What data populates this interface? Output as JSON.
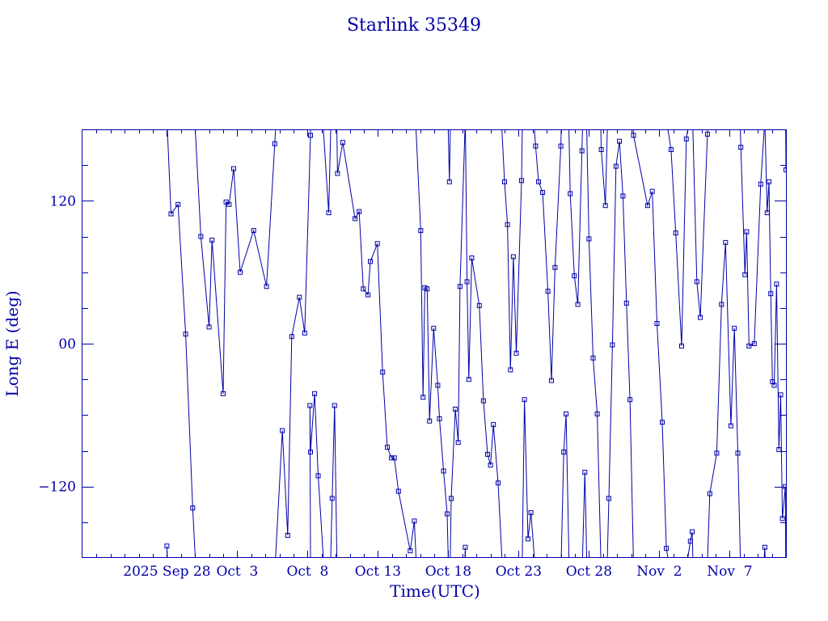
{
  "colors": {
    "ink": "#0000a8",
    "background": "#ffffff"
  },
  "chart_data": {
    "type": "line",
    "title": "Starlink 35349",
    "xlabel": "Time(UTC)",
    "ylabel": "Long E (deg)",
    "x_unit": "days",
    "xlim": [
      "2025-09-22",
      "2025-11-11"
    ],
    "ylim": [
      -180,
      180
    ],
    "x_ticks": [
      {
        "date": "2025-09-28",
        "label": "2025 Sep 28"
      },
      {
        "date": "2025-10-03",
        "label": "Oct  3"
      },
      {
        "date": "2025-10-08",
        "label": "Oct  8"
      },
      {
        "date": "2025-10-13",
        "label": "Oct 13"
      },
      {
        "date": "2025-10-18",
        "label": "Oct 18"
      },
      {
        "date": "2025-10-23",
        "label": "Oct 23"
      },
      {
        "date": "2025-10-28",
        "label": "Oct 28"
      },
      {
        "date": "2025-11-02",
        "label": "Nov  2"
      },
      {
        "date": "2025-11-07",
        "label": "Nov  7"
      }
    ],
    "x_minor_step_days": 1,
    "y_ticks": [
      {
        "value": 120,
        "label": "120"
      },
      {
        "value": 0,
        "label": "00"
      },
      {
        "value": -120,
        "label": "−120"
      }
    ],
    "y_minor_step": 30,
    "grid": false,
    "legend": "none",
    "marker": "square",
    "series": [
      {
        "points": [
          [
            "2025-09-28T00:00Z",
            -170
          ],
          [
            "2025-09-28T07:00Z",
            109
          ],
          [
            "2025-09-28T19:00Z",
            117
          ],
          [
            "2025-09-29T08:00Z",
            8
          ],
          [
            "2025-09-29T20:00Z",
            -138
          ],
          [
            "2025-09-30T10:00Z",
            90
          ],
          [
            "2025-10-01T00:00Z",
            14
          ],
          [
            "2025-10-01T05:00Z",
            87
          ],
          [
            "2025-10-02T00:00Z",
            -42
          ],
          [
            "2025-10-02T05:00Z",
            119
          ],
          [
            "2025-10-02T10:00Z",
            117
          ],
          [
            "2025-10-02T18:00Z",
            147
          ],
          [
            "2025-10-03T05:00Z",
            60
          ],
          [
            "2025-10-04T04:00Z",
            95
          ],
          [
            "2025-10-05T02:00Z",
            48
          ],
          [
            "2025-10-05T16:00Z",
            168
          ],
          [
            "2025-10-06T05:00Z",
            -73
          ],
          [
            "2025-10-06T14:00Z",
            -161
          ],
          [
            "2025-10-06T21:00Z",
            6
          ],
          [
            "2025-10-07T10:00Z",
            39
          ],
          [
            "2025-10-07T19:00Z",
            9
          ],
          [
            "2025-10-08T05:00Z",
            175
          ],
          [
            "2025-10-08T04:00Z",
            -52
          ],
          [
            "2025-10-08T05:00Z",
            -91
          ],
          [
            "2025-10-08T12:00Z",
            -42
          ],
          [
            "2025-10-08T18:00Z",
            -111
          ],
          [
            "2025-10-09T12:00Z",
            110
          ],
          [
            "2025-10-09T18:00Z",
            -130
          ],
          [
            "2025-10-09T22:00Z",
            -52
          ],
          [
            "2025-10-10T03:00Z",
            143
          ],
          [
            "2025-10-10T12:00Z",
            169
          ],
          [
            "2025-10-11T09:00Z",
            105
          ],
          [
            "2025-10-11T16:00Z",
            111
          ],
          [
            "2025-10-11T23:00Z",
            46
          ],
          [
            "2025-10-12T07:00Z",
            41
          ],
          [
            "2025-10-12T11:00Z",
            69
          ],
          [
            "2025-10-12T23:00Z",
            84
          ],
          [
            "2025-10-13T08:00Z",
            -24
          ],
          [
            "2025-10-13T16:00Z",
            -87
          ],
          [
            "2025-10-13T23:00Z",
            -96
          ],
          [
            "2025-10-14T04:00Z",
            -96
          ],
          [
            "2025-10-14T11:00Z",
            -124
          ],
          [
            "2025-10-15T07:00Z",
            -174
          ],
          [
            "2025-10-15T14:00Z",
            -149
          ],
          [
            "2025-10-16T01:00Z",
            95
          ],
          [
            "2025-10-16T05:00Z",
            -45
          ],
          [
            "2025-10-16T08:00Z",
            47
          ],
          [
            "2025-10-16T12:00Z",
            46
          ],
          [
            "2025-10-16T16:00Z",
            -65
          ],
          [
            "2025-10-16T23:00Z",
            13
          ],
          [
            "2025-10-17T06:00Z",
            -35
          ],
          [
            "2025-10-17T09:00Z",
            -63
          ],
          [
            "2025-10-17T16:00Z",
            -107
          ],
          [
            "2025-10-17T22:00Z",
            -143
          ],
          [
            "2025-10-18T02:00Z",
            136
          ],
          [
            "2025-10-18T05:00Z",
            -130
          ],
          [
            "2025-10-18T12:00Z",
            -55
          ],
          [
            "2025-10-18T17:00Z",
            -83
          ],
          [
            "2025-10-18T20:00Z",
            48
          ],
          [
            "2025-10-19T05:00Z",
            -171
          ],
          [
            "2025-10-19T08:00Z",
            52
          ],
          [
            "2025-10-19T11:00Z",
            -30
          ],
          [
            "2025-10-19T16:00Z",
            72
          ],
          [
            "2025-10-20T05:00Z",
            32
          ],
          [
            "2025-10-20T12:00Z",
            -48
          ],
          [
            "2025-10-20T19:00Z",
            -93
          ],
          [
            "2025-10-21T00:00Z",
            -102
          ],
          [
            "2025-10-21T05:00Z",
            -68
          ],
          [
            "2025-10-21T13:00Z",
            -117
          ],
          [
            "2025-10-22T00:00Z",
            136
          ],
          [
            "2025-10-22T05:00Z",
            100
          ],
          [
            "2025-10-22T10:00Z",
            -22
          ],
          [
            "2025-10-22T15:00Z",
            73
          ],
          [
            "2025-10-22T20:00Z",
            -8
          ],
          [
            "2025-10-23T05:00Z",
            137
          ],
          [
            "2025-10-23T10:00Z",
            -47
          ],
          [
            "2025-10-23T16:00Z",
            -164
          ],
          [
            "2025-10-23T21:00Z",
            -142
          ],
          [
            "2025-10-24T05:00Z",
            166
          ],
          [
            "2025-10-24T10:00Z",
            136
          ],
          [
            "2025-10-24T17:00Z",
            127
          ],
          [
            "2025-10-25T02:00Z",
            44
          ],
          [
            "2025-10-25T08:00Z",
            -31
          ],
          [
            "2025-10-25T14:00Z",
            64
          ],
          [
            "2025-10-26T00:00Z",
            166
          ],
          [
            "2025-10-26T05:00Z",
            -91
          ],
          [
            "2025-10-26T09:00Z",
            -59
          ],
          [
            "2025-10-26T16:00Z",
            126
          ],
          [
            "2025-10-26T23:00Z",
            57
          ],
          [
            "2025-10-27T05:00Z",
            33
          ],
          [
            "2025-10-27T12:00Z",
            162
          ],
          [
            "2025-10-27T17:00Z",
            -108
          ],
          [
            "2025-10-28T00:00Z",
            88
          ],
          [
            "2025-10-28T07:00Z",
            -12
          ],
          [
            "2025-10-28T14:00Z",
            -59
          ],
          [
            "2025-10-28T21:00Z",
            163
          ],
          [
            "2025-10-29T04:00Z",
            116
          ],
          [
            "2025-10-29T10:00Z",
            -130
          ],
          [
            "2025-10-29T16:00Z",
            -1
          ],
          [
            "2025-10-29T22:00Z",
            149
          ],
          [
            "2025-10-30T04:00Z",
            170
          ],
          [
            "2025-10-30T10:00Z",
            124
          ],
          [
            "2025-10-30T16:00Z",
            34
          ],
          [
            "2025-10-30T22:00Z",
            -47
          ],
          [
            "2025-10-31T04:00Z",
            175
          ],
          [
            "2025-11-01T04:00Z",
            116
          ],
          [
            "2025-11-01T12:00Z",
            128
          ],
          [
            "2025-11-01T20:00Z",
            17
          ],
          [
            "2025-11-02T05:00Z",
            -66
          ],
          [
            "2025-11-02T12:00Z",
            -172
          ],
          [
            "2025-11-02T20:00Z",
            163
          ],
          [
            "2025-11-03T04:00Z",
            93
          ],
          [
            "2025-11-03T14:00Z",
            -2
          ],
          [
            "2025-11-03T22:00Z",
            172
          ],
          [
            "2025-11-04T05:00Z",
            -166
          ],
          [
            "2025-11-04T08:00Z",
            -158
          ],
          [
            "2025-11-04T16:00Z",
            52
          ],
          [
            "2025-11-04T22:00Z",
            22
          ],
          [
            "2025-11-05T10:00Z",
            176
          ],
          [
            "2025-11-05T14:00Z",
            -126
          ],
          [
            "2025-11-06T02:00Z",
            -92
          ],
          [
            "2025-11-06T10:00Z",
            33
          ],
          [
            "2025-11-06T17:00Z",
            85
          ],
          [
            "2025-11-07T02:00Z",
            -69
          ],
          [
            "2025-11-07T08:00Z",
            13
          ],
          [
            "2025-11-07T14:00Z",
            -92
          ],
          [
            "2025-11-07T19:00Z",
            165
          ],
          [
            "2025-11-08T02:00Z",
            58
          ],
          [
            "2025-11-08T05:00Z",
            94
          ],
          [
            "2025-11-08T09:00Z",
            -2
          ],
          [
            "2025-11-08T18:00Z",
            0
          ],
          [
            "2025-11-09T05:00Z",
            134
          ],
          [
            "2025-11-09T12:00Z",
            -171
          ],
          [
            "2025-11-09T16:00Z",
            110
          ],
          [
            "2025-11-09T19:00Z",
            136
          ],
          [
            "2025-11-09T22:00Z",
            42
          ],
          [
            "2025-11-10T01:00Z",
            -32
          ],
          [
            "2025-11-10T04:00Z",
            -35
          ],
          [
            "2025-11-10T08:00Z",
            50
          ],
          [
            "2025-11-10T12:00Z",
            -89
          ],
          [
            "2025-11-10T15:00Z",
            -43
          ],
          [
            "2025-11-10T18:00Z",
            -147
          ],
          [
            "2025-11-10T23:00Z",
            -120
          ],
          [
            "2025-11-11T00:00Z",
            146
          ]
        ]
      }
    ]
  }
}
